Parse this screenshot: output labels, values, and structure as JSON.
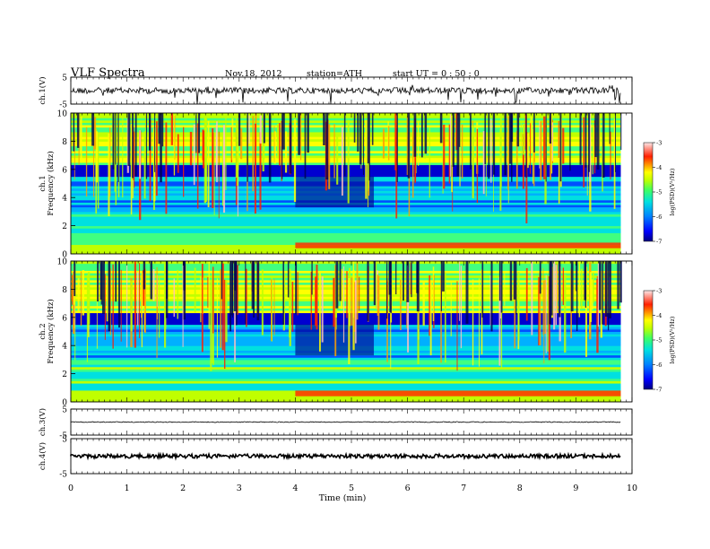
{
  "header": {
    "title": "VLF  Spectra",
    "date": "Nov.18, 2012",
    "station": "station=ATH",
    "start": "start  UT  =   0 : 50 : 0"
  },
  "chart_data": {
    "type": "heatmap",
    "xlabel": "Time  (min)",
    "xlim": [
      0,
      10
    ],
    "xticks": [
      "0",
      "1",
      "2",
      "3",
      "4",
      "5",
      "6",
      "7",
      "8",
      "9",
      "10"
    ],
    "data_end_min": 9.8,
    "panels": [
      {
        "kind": "waveform",
        "ylabel": "ch.1(V)",
        "yticks": [
          "5",
          "-5"
        ],
        "ylim": [
          -5,
          5
        ],
        "baseline": 0,
        "noise_amplitude": "large"
      },
      {
        "kind": "spectrogram",
        "ylabel": "ch.1\nFrequency  (kHz)",
        "ylim": [
          0,
          10
        ],
        "yticks": [
          "0",
          "2",
          "4",
          "6",
          "8",
          "10"
        ],
        "colorbar": {
          "label": "log(PSD)(V²/Hz)",
          "ticks": [
            "-3",
            "-4",
            "-5",
            "-6",
            "-7"
          ],
          "range": [
            -7,
            -3
          ]
        },
        "band_change_min": [
          4.0,
          5.4
        ]
      },
      {
        "kind": "spectrogram",
        "ylabel": "ch.2\nFrequency  (kHz)",
        "ylim": [
          0,
          10
        ],
        "yticks": [
          "0",
          "2",
          "4",
          "6",
          "8",
          "10"
        ],
        "colorbar": {
          "label": "log(PSD)(V²/Hz)",
          "ticks": [
            "-3",
            "-4",
            "-5",
            "-6",
            "-7"
          ],
          "range": [
            -7,
            -3
          ]
        },
        "band_change_min": [
          4.0,
          5.4
        ]
      },
      {
        "kind": "waveform",
        "ylabel": "ch.3(V)",
        "yticks": [
          "5",
          "-5"
        ],
        "ylim": [
          -5,
          5
        ],
        "baseline": 0,
        "noise_amplitude": "small"
      },
      {
        "kind": "waveform",
        "ylabel": "ch.4(V)",
        "yticks": [
          "5",
          "-5"
        ],
        "ylim": [
          -5,
          5
        ],
        "baseline": 0,
        "noise_amplitude": "thick"
      }
    ],
    "colormap": [
      "#000080",
      "#0000d0",
      "#0050ff",
      "#00b0ff",
      "#00e0e0",
      "#40ff80",
      "#c0ff00",
      "#ffff00",
      "#ffa000",
      "#ff2000",
      "#ffc0c0"
    ]
  }
}
